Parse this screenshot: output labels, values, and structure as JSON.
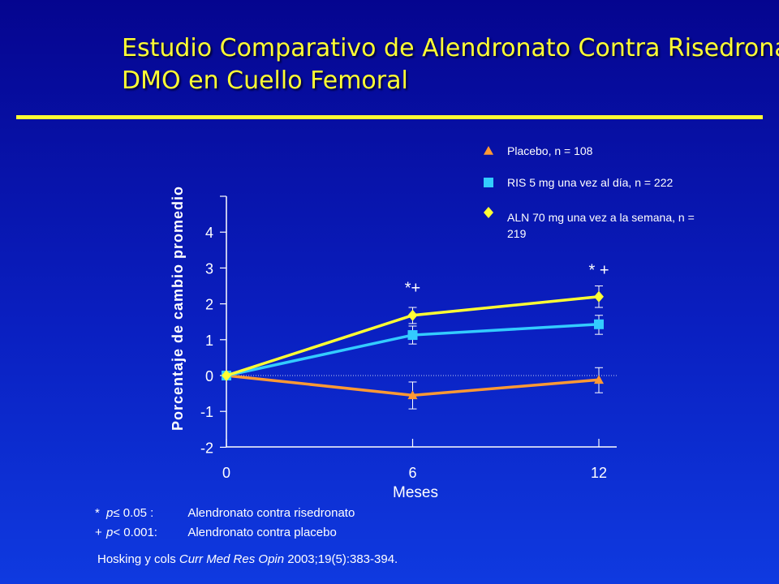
{
  "slide": {
    "title_line1": "Estudio Comparativo de Alendronato Contra Risedronato",
    "title_line2": "DMO en Cuello Femoral"
  },
  "colors": {
    "title": "#ffff33",
    "placebo": "#ff9933",
    "ris": "#33ccff",
    "aln": "#ffff33",
    "background_top": "#05058f",
    "background_bottom": "#0f3ae0"
  },
  "chart_data": {
    "type": "line",
    "xlabel": "Meses",
    "ylabel": "Porcentaje de cambio promedio",
    "x": [
      0,
      6,
      12
    ],
    "x_ticks": [
      "0",
      "6",
      "12"
    ],
    "y_ticks": [
      "-2",
      "-1",
      "0",
      "1",
      "2",
      "3",
      "4"
    ],
    "ylim": [
      -2,
      5
    ],
    "grid": false,
    "reference_line_at_zero": true,
    "legend_position": "top-right",
    "series": [
      {
        "name": "Placebo, n = 108",
        "marker": "triangle",
        "values": [
          0,
          -0.55,
          -0.12
        ],
        "err_high": [
          0,
          -0.18,
          0.22
        ],
        "err_low": [
          0,
          -0.93,
          -0.48
        ]
      },
      {
        "name": "RIS 5 mg una vez al día, n = 222",
        "marker": "square",
        "values": [
          0,
          1.13,
          1.43
        ],
        "err_high": [
          0,
          1.38,
          1.68
        ],
        "err_low": [
          0,
          0.88,
          1.15
        ]
      },
      {
        "name": "ALN 70 mg una vez a la semana, n = 219",
        "legend_lines": [
          "ALN 70 mg una vez a la semana, n =",
          "219"
        ],
        "marker": "diamond",
        "values": [
          0,
          1.68,
          2.2
        ],
        "err_high": [
          0,
          1.9,
          2.5
        ],
        "err_low": [
          0,
          1.45,
          1.9
        ]
      }
    ],
    "annotations": [
      {
        "x": 6,
        "y": 2.45,
        "text": "*+"
      },
      {
        "x": 12,
        "y": 2.95,
        "text": "* +"
      }
    ]
  },
  "footnotes": {
    "note1": {
      "symbol": "*",
      "cond_pre": "",
      "cond_var": "p",
      "cond_post": " ≤ 0.05 :",
      "text": "Alendronato contra risedronato"
    },
    "note2": {
      "symbol": "+",
      "cond_pre": "",
      "cond_var": "p",
      "cond_post": " < 0.001:",
      "text": "Alendronato contra placebo"
    }
  },
  "citation": {
    "authors": "Hosking y cols ",
    "journal": "Curr Med Res Opin",
    "ref": " 2003;19(5):383-394."
  }
}
